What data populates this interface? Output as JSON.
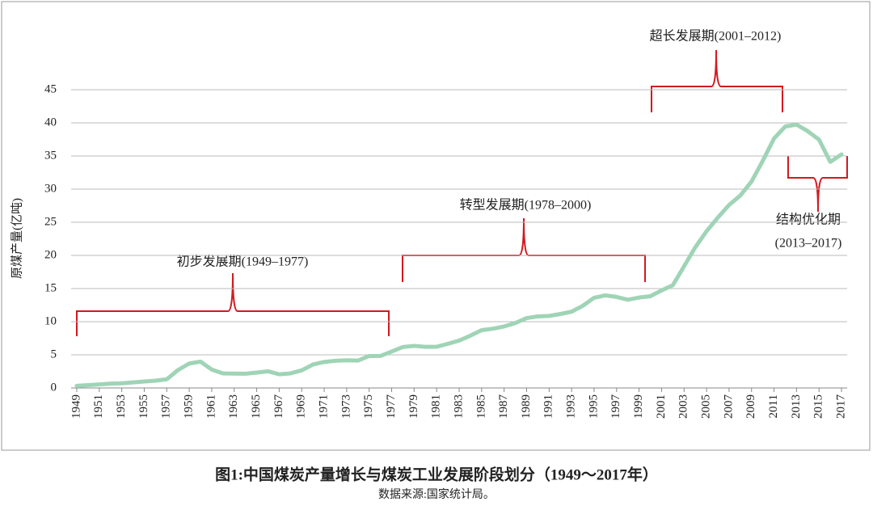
{
  "chart_data": {
    "type": "line",
    "title": "图1:中国煤炭产量增长与煤炭工业发展阶段划分（1949～2017年）",
    "source": "数据来源:国家统计局。",
    "y_label": "原煤产量(亿吨)",
    "annotations": [
      "初步发展期(1949–1977)",
      "转型发展期(1978–2000)",
      "超长发展期(2001–2012)",
      "结构优化期",
      "(2013–2017)"
    ],
    "color": "#9fd4b6",
    "x": [
      1949,
      1950,
      1951,
      1952,
      1953,
      1954,
      1955,
      1956,
      1957,
      1958,
      1959,
      1960,
      1961,
      1962,
      1963,
      1964,
      1965,
      1966,
      1967,
      1968,
      1969,
      1970,
      1971,
      1972,
      1973,
      1974,
      1975,
      1976,
      1977,
      1978,
      1979,
      1980,
      1981,
      1982,
      1983,
      1984,
      1985,
      1986,
      1987,
      1988,
      1989,
      1990,
      1991,
      1992,
      1993,
      1994,
      1995,
      1996,
      1997,
      1998,
      1999,
      2000,
      2001,
      2002,
      2003,
      2004,
      2005,
      2006,
      2007,
      2008,
      2009,
      2010,
      2011,
      2012,
      2013,
      2014,
      2015,
      2016,
      2017
    ],
    "values": [
      0.32,
      0.43,
      0.53,
      0.66,
      0.7,
      0.84,
      0.98,
      1.1,
      1.31,
      2.7,
      3.69,
      3.97,
      2.78,
      2.2,
      2.17,
      2.15,
      2.32,
      2.52,
      2.06,
      2.2,
      2.66,
      3.54,
      3.92,
      4.1,
      4.17,
      4.13,
      4.82,
      4.83,
      5.5,
      6.18,
      6.35,
      6.2,
      6.22,
      6.66,
      7.15,
      7.89,
      8.72,
      8.94,
      9.28,
      9.8,
      10.54,
      10.8,
      10.87,
      11.16,
      11.51,
      12.4,
      13.61,
      13.97,
      13.73,
      13.32,
      13.64,
      13.84,
      14.72,
      15.5,
      18.35,
      21.23,
      23.65,
      25.7,
      27.6,
      29.03,
      31.15,
      34.28,
      37.64,
      39.45,
      39.74,
      38.74,
      37.47,
      34.11,
      35.24
    ],
    "xlim": [
      1948.5,
      2017.5
    ],
    "xticks": [
      1949,
      1951,
      1953,
      1955,
      1957,
      1959,
      1961,
      1963,
      1965,
      1967,
      1969,
      1971,
      1973,
      1975,
      1977,
      1979,
      1981,
      1983,
      1985,
      1987,
      1989,
      1991,
      1993,
      1995,
      1997,
      1999,
      2001,
      2003,
      2005,
      2007,
      2009,
      2011,
      2013,
      2015,
      2017
    ],
    "ylim": [
      0,
      45
    ],
    "yticks": [
      0,
      5,
      10,
      15,
      20,
      25,
      30,
      35,
      40,
      45
    ],
    "grid": true
  }
}
